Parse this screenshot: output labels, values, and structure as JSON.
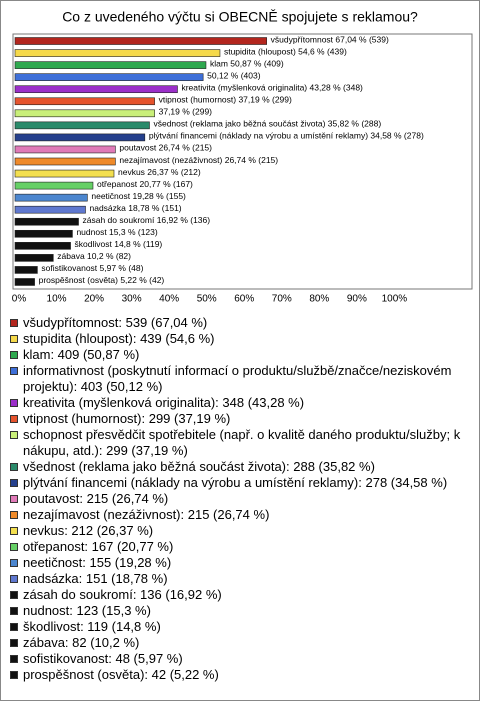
{
  "chart_data": {
    "type": "bar",
    "orientation": "horizontal",
    "title": "Co z uvedeného výčtu si OBECNĚ spojujete s reklamou?",
    "categories": [
      "všudypřítomnost: 539 (67,04 %)",
      "stupidita (hloupost): 439 (54,6 %)",
      "klam: 409 (50,87 %)",
      "informativnost (poskytnutí informací o produktu/službě/značce/neziskovém projektu): 403 (50,12 %)",
      "kreativita (myšlenková originalita): 348 (43,28 %)",
      "vtipnost (humornost): 299 (37,19 %)",
      "schopnost přesvědčit spotřebitele (např. o kvalitě daného produktu/služby; k nákupu, atd.): 299 (37,19 %)",
      "všednost (reklama jako běžná součást života): 288 (35,82 %)",
      "plýtvání financemi (náklady na výrobu a umístění reklamy): 278 (34,58 %)",
      "poutavost: 215 (26,74 %)",
      "nezajímavost (nezáživnost): 215 (26,74 %)",
      "nevkus: 212 (26,37 %)",
      "otřepanost: 167 (20,77 %)",
      "neetičnost: 155 (19,28 %)",
      "nadsázka: 151 (18,78 %)",
      "zásah do soukromí: 136 (16,92 %)",
      "nudnost: 123 (15,3 %)",
      "škodlivost: 119 (14,8 %)",
      "zábava: 82 (10,2 %)",
      "sofistikovanost: 48 (5,97 %)",
      "prospěšnost (osvěta): 42 (5,22 %)"
    ],
    "values": [
      67.04,
      54.6,
      50.87,
      50.12,
      43.28,
      37.19,
      37.19,
      35.82,
      34.58,
      26.74,
      26.74,
      26.37,
      20.77,
      19.28,
      18.78,
      16.92,
      15.3,
      14.8,
      10.2,
      5.97,
      5.22
    ],
    "value_labels": [
      "všudypřítomnost 67,04 % (539)",
      "stupidita (hloupost) 54,6 % (439)",
      "klam 50,87 % (409)",
      "50,12 % (403)",
      "kreativita (myšlenková originalita) 43,28 % (348)",
      "vtipnost (humornost) 37,19 % (299)",
      "37,19 % (299)",
      "všednost (reklama jako běžná součást života) 35,82 % (288)",
      "plýtvání financemi (náklady na výrobu a umístění reklamy) 34,58 % (278)",
      "poutavost 26,74 % (215)",
      "nezajímavost (nezáživnost) 26,74 % (215)",
      "nevkus 26,37 % (212)",
      "otřepanost 20,77 % (167)",
      "neetičnost 19,28 % (155)",
      "nadsázka 18,78 % (151)",
      "zásah do soukromí 16,92 % (136)",
      "nudnost 15,3 % (123)",
      "škodlivost 14,8 % (119)",
      "zábava 10,2 % (82)",
      "sofistikovanost 5,97 % (48)",
      "prospěšnost (osvěta) 5,22 % (42)"
    ],
    "colors": [
      "#b3261e",
      "#f5d94a",
      "#2fa84f",
      "#3e6fd8",
      "#9b2fc9",
      "#e5532d",
      "#c9ef79",
      "#2a8a6a",
      "#243f8c",
      "#e07ab8",
      "#ef8a2a",
      "#f3df4f",
      "#66d066",
      "#4b86cf",
      "#5f78cf",
      "#111111",
      "#111111",
      "#111111",
      "#111111",
      "#111111",
      "#111111"
    ],
    "xlim": [
      0,
      122
    ],
    "xticks": [
      {
        "value": 0,
        "label": "0%"
      },
      {
        "value": 10,
        "label": "10%"
      },
      {
        "value": 20,
        "label": "20%"
      },
      {
        "value": 30,
        "label": "30%"
      },
      {
        "value": 40,
        "label": "40%"
      },
      {
        "value": 50,
        "label": "50%"
      },
      {
        "value": 60,
        "label": "60%"
      },
      {
        "value": 70,
        "label": "70%"
      },
      {
        "value": 80,
        "label": "80%"
      },
      {
        "value": 90,
        "label": "90%"
      },
      {
        "value": 100,
        "label": "100%"
      }
    ],
    "grid": false
  }
}
